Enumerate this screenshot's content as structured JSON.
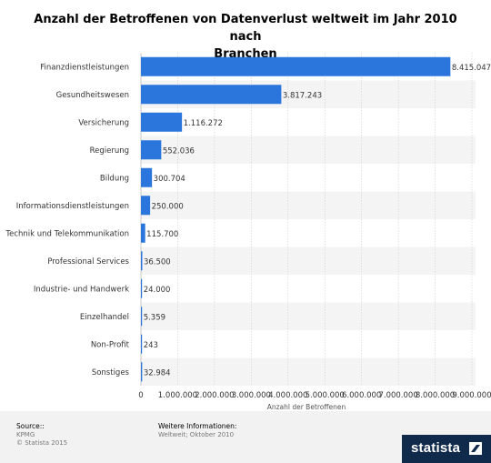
{
  "chart_data": {
    "type": "bar",
    "orientation": "horizontal",
    "title": "Anzahl der Betroffenen von Datenverlust weltweit im Jahr 2010 nach Branchen",
    "title_lines": [
      "Anzahl der Betroffenen von Datenverlust weltweit im Jahr 2010 nach",
      "Branchen"
    ],
    "xlabel": "Anzahl der Betroffenen",
    "ylabel": "",
    "xlim": [
      0,
      9000000
    ],
    "ticks": [
      0,
      1000000,
      2000000,
      3000000,
      4000000,
      5000000,
      6000000,
      7000000,
      8000000,
      9000000
    ],
    "tick_labels": [
      "0",
      "1.000.000",
      "2.000.000",
      "3.000.000",
      "4.000.000",
      "5.000.000",
      "6.000.000",
      "7.000.000",
      "8.000.000",
      "9.000.000"
    ],
    "grid": true,
    "bar_color": "#2a76dd",
    "categories": [
      "Finanzdienstleistungen",
      "Gesundheitswesen",
      "Versicherung",
      "Regierung",
      "Bildung",
      "Informationsdienstleistungen",
      "Technik und Telekommunikation",
      "Professional Services",
      "Industrie- und Handwerk",
      "Einzelhandel",
      "Non-Profit",
      "Sonstiges"
    ],
    "values": [
      8415047,
      3817243,
      1116272,
      552036,
      300704,
      250000,
      115700,
      36500,
      24000,
      5359,
      243,
      32984
    ],
    "value_labels": [
      "8.415.047",
      "3.817.243",
      "1.116.272",
      "552.036",
      "300.704",
      "250.000",
      "115.700",
      "36.500",
      "24.000",
      "5.359",
      "243",
      "32.984"
    ]
  },
  "footer": {
    "source_heading": "Source::",
    "source_lines": [
      "KPMG",
      "© Statista 2015"
    ],
    "info_heading": "Weitere Informationen:",
    "info_line": "Weltweit; Oktober 2010",
    "logo_text": "statista"
  }
}
